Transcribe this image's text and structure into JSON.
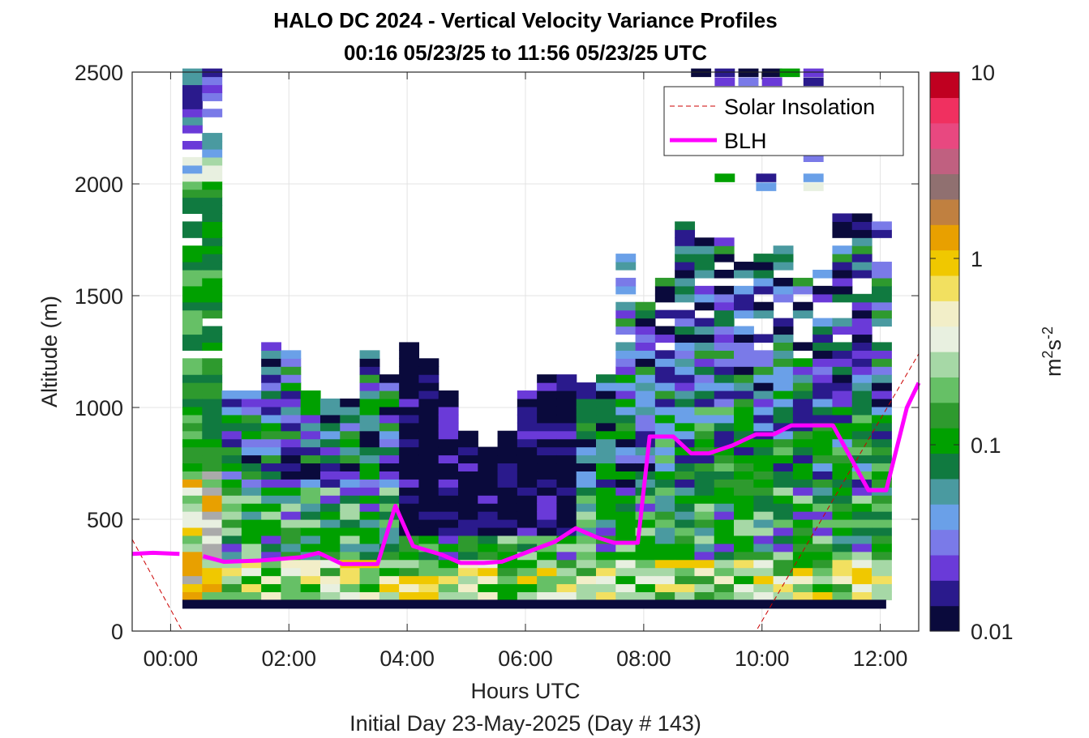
{
  "chart_data": {
    "type": "heatmap",
    "title_line1": "HALO DC 2024 - Vertical Velocity Variance Profiles",
    "title_line2": "00:16 05/23/25 to 11:56 05/23/25  UTC",
    "xlabel": "Hours UTC",
    "xlabel2": "Initial Day 23-May-2025 (Day # 143)",
    "ylabel": "Altitude (m)",
    "xlim_hours": [
      -0.65,
      12.65
    ],
    "ylim": [
      0,
      2500
    ],
    "x_ticks": [
      {
        "value": 0,
        "label": "00:00"
      },
      {
        "value": 2,
        "label": "02:00"
      },
      {
        "value": 4,
        "label": "04:00"
      },
      {
        "value": 6,
        "label": "06:00"
      },
      {
        "value": 8,
        "label": "08:00"
      },
      {
        "value": 10,
        "label": "10:00"
      },
      {
        "value": 12,
        "label": "12:00"
      }
    ],
    "y_ticks": [
      {
        "value": 0,
        "label": "0"
      },
      {
        "value": 500,
        "label": "500"
      },
      {
        "value": 1000,
        "label": "1000"
      },
      {
        "value": 1500,
        "label": "1500"
      },
      {
        "value": 2000,
        "label": "2000"
      },
      {
        "value": 2500,
        "label": "2500"
      }
    ],
    "grid": true,
    "colorbar": {
      "scale": "log",
      "range": [
        0.01,
        10
      ],
      "ticks": [
        {
          "value": 0.01,
          "label": "0.01"
        },
        {
          "value": 0.1,
          "label": "0.1"
        },
        {
          "value": 1,
          "label": "1"
        },
        {
          "value": 10,
          "label": "10"
        }
      ],
      "unit_label": "m",
      "unit_sup1": "2",
      "unit_s": "s",
      "unit_sup2": "-2",
      "colors": [
        "#0a0a3c",
        "#2a1a8c",
        "#6a3ad8",
        "#7a7ae8",
        "#6aa0e8",
        "#4a9aa0",
        "#107a40",
        "#00a000",
        "#2e9a2e",
        "#66c066",
        "#a6d8a6",
        "#e8f0e0",
        "#f2eec8",
        "#f2e060",
        "#f0c800",
        "#e8a000",
        "#c08040",
        "#907070",
        "#c06080",
        "#e84880",
        "#f03060",
        "#c00020"
      ]
    },
    "legend": {
      "position": "top-right",
      "entries": [
        {
          "label": "Solar Insolation",
          "style": "dashed",
          "color": "#cc0000"
        },
        {
          "label": "BLH",
          "style": "solid",
          "color": "#ff00ff"
        }
      ]
    },
    "blh": {
      "hours": [
        -0.65,
        -0.3,
        0.15,
        0.55,
        0.9,
        1.5,
        2.2,
        2.5,
        2.9,
        3.5,
        3.8,
        4.1,
        4.6,
        4.9,
        5.3,
        5.6,
        6.1,
        6.5,
        6.85,
        7.2,
        7.5,
        7.9,
        8.1,
        8.5,
        8.8,
        9.1,
        9.5,
        9.9,
        10.2,
        10.5,
        10.9,
        11.2,
        11.8,
        12.1,
        12.45,
        12.65
      ],
      "altitude_m": [
        345,
        350,
        345,
        335,
        310,
        315,
        330,
        350,
        300,
        300,
        560,
        380,
        340,
        305,
        305,
        310,
        360,
        400,
        460,
        420,
        395,
        395,
        870,
        870,
        795,
        795,
        830,
        880,
        880,
        920,
        920,
        920,
        630,
        630,
        1000,
        1110
      ]
    },
    "solar_insolation": {
      "hours": [
        -0.65,
        0.2,
        9.9,
        12.65
      ],
      "altitude_m": [
        410,
        0,
        0,
        1240
      ]
    },
    "heatmap": {
      "time_step_hours": 0.333,
      "range_gate_m": 36,
      "values_m2s2": "approximately 0.01-1; high variance near surface (0.1-1), low variance (0.01-0.03) aloft between 04:00-06:00, green 0.05-0.15 over most of the boundary layer"
    }
  }
}
